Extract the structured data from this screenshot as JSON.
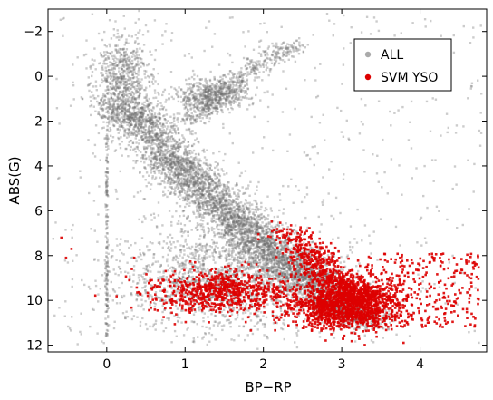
{
  "chart_data": {
    "type": "scatter",
    "title": "",
    "xlabel": "BP−RP",
    "ylabel": "ABS(G)",
    "xlim": [
      -0.75,
      4.85
    ],
    "ylim": [
      12.3,
      -3.0
    ],
    "y_inverted": true,
    "grid": false,
    "legend_position": "top-right",
    "x_ticks": [
      0,
      1,
      2,
      3,
      4
    ],
    "x_tick_labels": [
      "0",
      "1",
      "2",
      "3",
      "4"
    ],
    "y_ticks": [
      -2,
      0,
      2,
      4,
      6,
      8,
      10,
      12
    ],
    "y_tick_labels": [
      "−2",
      "0",
      "2",
      "4",
      "6",
      "8",
      "10",
      "12"
    ],
    "series": [
      {
        "name": "ALL",
        "color": "#7f7f7f",
        "marker": "square",
        "density_regions": [
          {
            "desc": "main sequence ridge",
            "path": [
              [
                0.2,
                1.2
              ],
              [
                0.5,
                2.2
              ],
              [
                0.8,
                3.6
              ],
              [
                1.1,
                4.6
              ],
              [
                1.4,
                5.6
              ],
              [
                1.7,
                6.6
              ],
              [
                2.0,
                7.5
              ],
              [
                2.3,
                8.4
              ],
              [
                2.6,
                9.2
              ],
              [
                3.0,
                10.3
              ],
              [
                3.3,
                10.9
              ]
            ],
            "x_spread": 0.22,
            "weight": 0.55
          },
          {
            "desc": "red clump",
            "center": [
              1.35,
              0.8
            ],
            "spread": [
              0.25,
              0.35
            ],
            "weight": 0.05
          },
          {
            "desc": "red giant branch",
            "path": [
              [
                1.1,
                2.0
              ],
              [
                1.3,
                1.2
              ],
              [
                1.6,
                0.3
              ],
              [
                2.0,
                -0.6
              ],
              [
                2.4,
                -1.5
              ]
            ],
            "x_spread": 0.12,
            "weight": 0.06
          },
          {
            "desc": "white dwarf to subdwarf envelope",
            "center": [
              1.5,
              9.0
            ],
            "spread": [
              0.65,
              1.2
            ],
            "weight": 0.18
          },
          {
            "desc": "upper main sequence",
            "center": [
              0.2,
              0.2
            ],
            "spread": [
              0.18,
              1.0
            ],
            "weight": 0.08
          },
          {
            "desc": "zero colour column",
            "x": 0.0,
            "y_range": [
              2.6,
              11.6
            ],
            "weight": 0.02
          },
          {
            "desc": "scattered field",
            "x_range": [
              -0.7,
              4.8
            ],
            "y_range": [
              -2.8,
              12.0
            ],
            "weight": 0.06
          }
        ]
      },
      {
        "name": "SVM YSO",
        "color": "#dd0000",
        "marker": "square",
        "density_regions": [
          {
            "desc": "low-mass YSO locus",
            "center": [
              3.05,
              10.2
            ],
            "spread": [
              0.35,
              0.55
            ],
            "weight": 0.45
          },
          {
            "desc": "YSO upper band",
            "path": [
              [
                2.35,
                7.0
              ],
              [
                2.7,
                8.3
              ],
              [
                3.0,
                9.3
              ],
              [
                3.4,
                10.0
              ]
            ],
            "x_spread": 0.18,
            "weight": 0.2
          },
          {
            "desc": "blue YSO group",
            "center": [
              1.45,
              9.6
            ],
            "spread": [
              0.45,
              0.45
            ],
            "weight": 0.22
          },
          {
            "desc": "red tail",
            "x_range": [
              3.3,
              4.75
            ],
            "y_range": [
              7.9,
              11.2
            ],
            "weight": 0.1
          },
          {
            "desc": "isolated",
            "points": [
              [
                -0.58,
                7.2
              ],
              [
                -0.52,
                8.1
              ],
              [
                -0.45,
                7.7
              ],
              [
                0.35,
                8.1
              ],
              [
                0.32,
                8.6
              ],
              [
                1.1,
                8.5
              ]
            ],
            "weight": 0.03
          }
        ]
      }
    ],
    "legend": [
      {
        "label": "ALL",
        "color": "#aaaaaa"
      },
      {
        "label": "SVM YSO",
        "color": "#dd0000"
      }
    ]
  }
}
